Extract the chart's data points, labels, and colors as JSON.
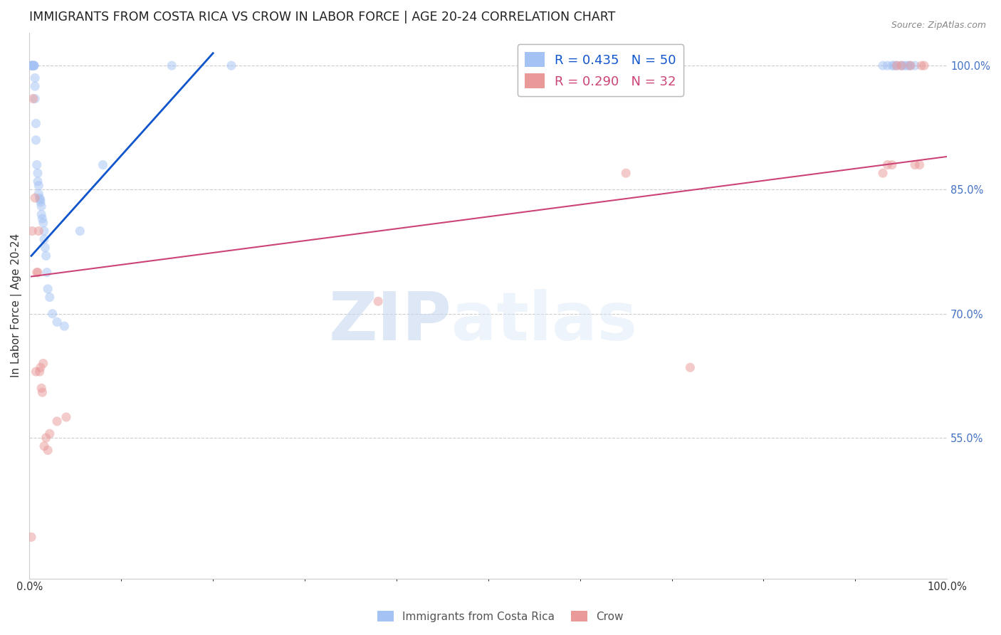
{
  "title": "IMMIGRANTS FROM COSTA RICA VS CROW IN LABOR FORCE | AGE 20-24 CORRELATION CHART",
  "source": "Source: ZipAtlas.com",
  "ylabel": "In Labor Force | Age 20-24",
  "xlim": [
    0.0,
    1.0
  ],
  "ylim": [
    0.38,
    1.04
  ],
  "x_tick_labels": [
    "0.0%",
    "100.0%"
  ],
  "x_tick_positions": [
    0.0,
    1.0
  ],
  "y_tick_labels": [
    "55.0%",
    "70.0%",
    "85.0%",
    "100.0%"
  ],
  "y_tick_positions": [
    0.55,
    0.7,
    0.85,
    1.0
  ],
  "watermark_zip": "ZIP",
  "watermark_atlas": "atlas",
  "legend_entries": [
    {
      "label": "R = 0.435   N = 50",
      "color": "#a4c2f4"
    },
    {
      "label": "R = 0.290   N = 32",
      "color": "#ea9999"
    }
  ],
  "legend_labels_bottom": [
    "Immigrants from Costa Rica",
    "Crow"
  ],
  "blue_scatter_x": [
    0.002,
    0.002,
    0.003,
    0.003,
    0.004,
    0.005,
    0.005,
    0.005,
    0.006,
    0.006,
    0.006,
    0.007,
    0.007,
    0.008,
    0.009,
    0.009,
    0.01,
    0.01,
    0.011,
    0.012,
    0.012,
    0.013,
    0.013,
    0.014,
    0.015,
    0.016,
    0.016,
    0.017,
    0.018,
    0.019,
    0.02,
    0.022,
    0.025,
    0.03,
    0.038,
    0.055,
    0.08,
    0.155,
    0.22,
    0.93,
    0.935,
    0.94,
    0.942,
    0.945,
    0.95,
    0.952,
    0.955,
    0.958,
    0.96,
    0.965
  ],
  "blue_scatter_y": [
    1.0,
    1.0,
    1.0,
    1.0,
    1.0,
    1.0,
    1.0,
    1.0,
    0.985,
    0.975,
    0.96,
    0.93,
    0.91,
    0.88,
    0.87,
    0.86,
    0.855,
    0.845,
    0.84,
    0.838,
    0.835,
    0.83,
    0.82,
    0.815,
    0.81,
    0.8,
    0.79,
    0.78,
    0.77,
    0.75,
    0.73,
    0.72,
    0.7,
    0.69,
    0.685,
    0.8,
    0.88,
    1.0,
    1.0,
    1.0,
    1.0,
    1.0,
    1.0,
    1.0,
    1.0,
    1.0,
    1.0,
    1.0,
    1.0,
    1.0
  ],
  "pink_scatter_x": [
    0.002,
    0.003,
    0.004,
    0.006,
    0.007,
    0.008,
    0.009,
    0.01,
    0.011,
    0.012,
    0.013,
    0.014,
    0.015,
    0.016,
    0.018,
    0.02,
    0.022,
    0.03,
    0.04,
    0.38,
    0.65,
    0.72,
    0.93,
    0.935,
    0.94,
    0.945,
    0.95,
    0.96,
    0.965,
    0.97,
    0.972,
    0.975
  ],
  "pink_scatter_y": [
    0.43,
    0.8,
    0.96,
    0.84,
    0.63,
    0.75,
    0.75,
    0.8,
    0.63,
    0.635,
    0.61,
    0.605,
    0.64,
    0.54,
    0.55,
    0.535,
    0.555,
    0.57,
    0.575,
    0.715,
    0.87,
    0.635,
    0.87,
    0.88,
    0.88,
    1.0,
    1.0,
    1.0,
    0.88,
    0.88,
    1.0,
    1.0
  ],
  "blue_line_x": [
    0.002,
    0.2
  ],
  "blue_line_y": [
    0.77,
    1.015
  ],
  "pink_line_x": [
    0.002,
    1.0
  ],
  "pink_line_y": [
    0.745,
    0.89
  ],
  "background_color": "#ffffff",
  "scatter_size": 90,
  "scatter_alpha": 0.5,
  "blue_color": "#a4c2f4",
  "pink_color": "#ea9999",
  "blue_line_color": "#1155cc",
  "pink_line_color": "#cc4477",
  "grid_color": "#cccccc",
  "grid_linestyle": "--",
  "title_fontsize": 12.5,
  "axis_label_fontsize": 11,
  "tick_fontsize": 10.5,
  "right_tick_color": "#4472c4"
}
